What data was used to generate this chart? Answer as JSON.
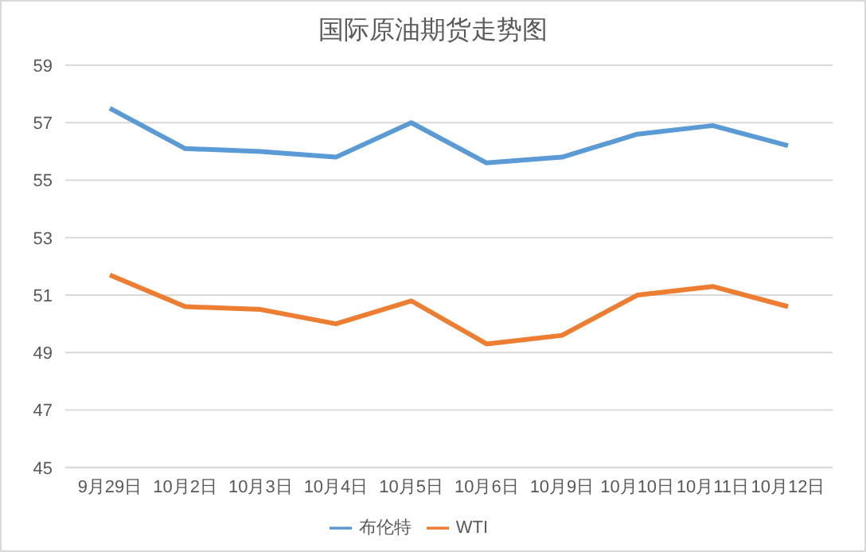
{
  "chart_data": {
    "type": "line",
    "title": "国际原油期货走势图",
    "categories": [
      "9月29日",
      "10月2日",
      "10月3日",
      "10月4日",
      "10月5日",
      "10月6日",
      "10月9日",
      "10月10日",
      "10月11日",
      "10月12日"
    ],
    "series": [
      {
        "name": "布伦特",
        "color": "#5b9bd5",
        "values": [
          57.5,
          56.1,
          56.0,
          55.8,
          57.0,
          55.6,
          55.8,
          56.6,
          56.9,
          56.2
        ]
      },
      {
        "name": "WTI",
        "color": "#ed7d31",
        "values": [
          51.7,
          50.6,
          50.5,
          50.0,
          50.8,
          49.3,
          49.6,
          51.0,
          51.3,
          50.6
        ]
      }
    ],
    "ylim": [
      45,
      59
    ],
    "yticks": [
      45,
      47,
      49,
      51,
      53,
      55,
      57,
      59
    ],
    "grid": "y",
    "legend": "bottom",
    "marker": "none",
    "line_style": "solid"
  }
}
